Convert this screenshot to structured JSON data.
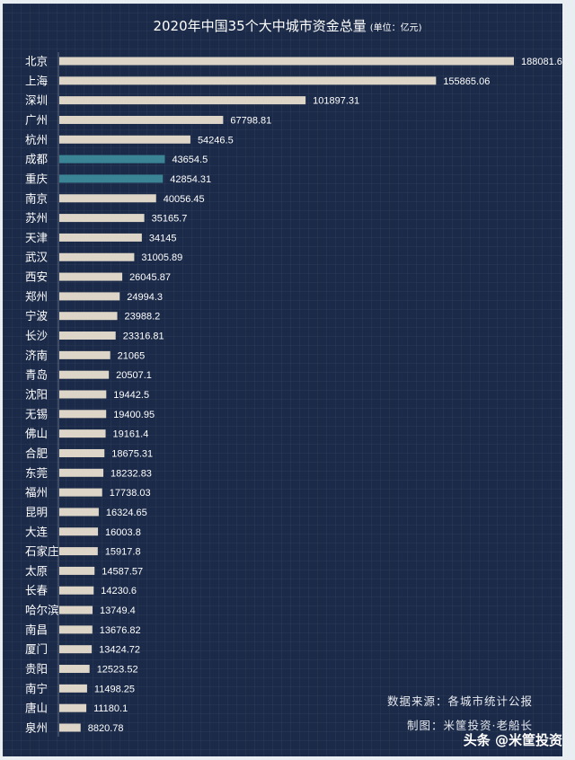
{
  "chart_data": {
    "type": "bar",
    "orientation": "horizontal",
    "title": "2020年中国35个大中城市资金总量",
    "unit": "(单位：亿元)",
    "categories": [
      "北京",
      "上海",
      "深圳",
      "广州",
      "杭州",
      "成都",
      "重庆",
      "南京",
      "苏州",
      "天津",
      "武汉",
      "西安",
      "郑州",
      "宁波",
      "长沙",
      "济南",
      "青岛",
      "沈阳",
      "无锡",
      "佛山",
      "合肥",
      "东莞",
      "福州",
      "昆明",
      "大连",
      "石家庄",
      "太原",
      "长春",
      "哈尔滨",
      "南昌",
      "厦门",
      "贵阳",
      "南宁",
      "唐山",
      "泉州"
    ],
    "values": [
      188081.6,
      155865.06,
      101897.31,
      67798.81,
      54246.5,
      43654.5,
      42854.31,
      40056.45,
      35165.7,
      34145,
      31005.89,
      26045.87,
      24994.3,
      23988.2,
      23316.81,
      21065,
      20507.1,
      19442.5,
      19400.95,
      19161.4,
      18675.31,
      18232.83,
      17738.03,
      16324.65,
      16003.8,
      15917.8,
      14587.57,
      14230.6,
      13749.4,
      13676.82,
      13424.72,
      12523.52,
      11498.25,
      11180.1,
      8820.78
    ],
    "value_labels": [
      "188081.6",
      "155865.06",
      "101897.31",
      "67798.81",
      "54246.5",
      "43654.5",
      "42854.31",
      "40056.45",
      "35165.7",
      "34145",
      "31005.89",
      "26045.87",
      "24994.3",
      "23988.2",
      "23316.81",
      "21065",
      "20507.1",
      "19442.5",
      "19400.95",
      "19161.4",
      "18675.31",
      "18232.83",
      "17738.03",
      "16324.65",
      "16003.8",
      "15917.8",
      "14587.57",
      "14230.6",
      "13749.4",
      "13676.82",
      "13424.72",
      "12523.52",
      "11498.25",
      "11180.1",
      "8820.78"
    ],
    "highlighted": [
      "成都",
      "重庆"
    ],
    "colors": {
      "bar": "#ddd5c7",
      "highlight": "#3b8496",
      "background": "#1b2a48"
    },
    "grid": false,
    "legend": "none"
  },
  "notes": {
    "source": "数据来源：各城市统计公报",
    "author": "制图：米筐投资·老船长"
  },
  "watermark": "头条 @米筐投资"
}
